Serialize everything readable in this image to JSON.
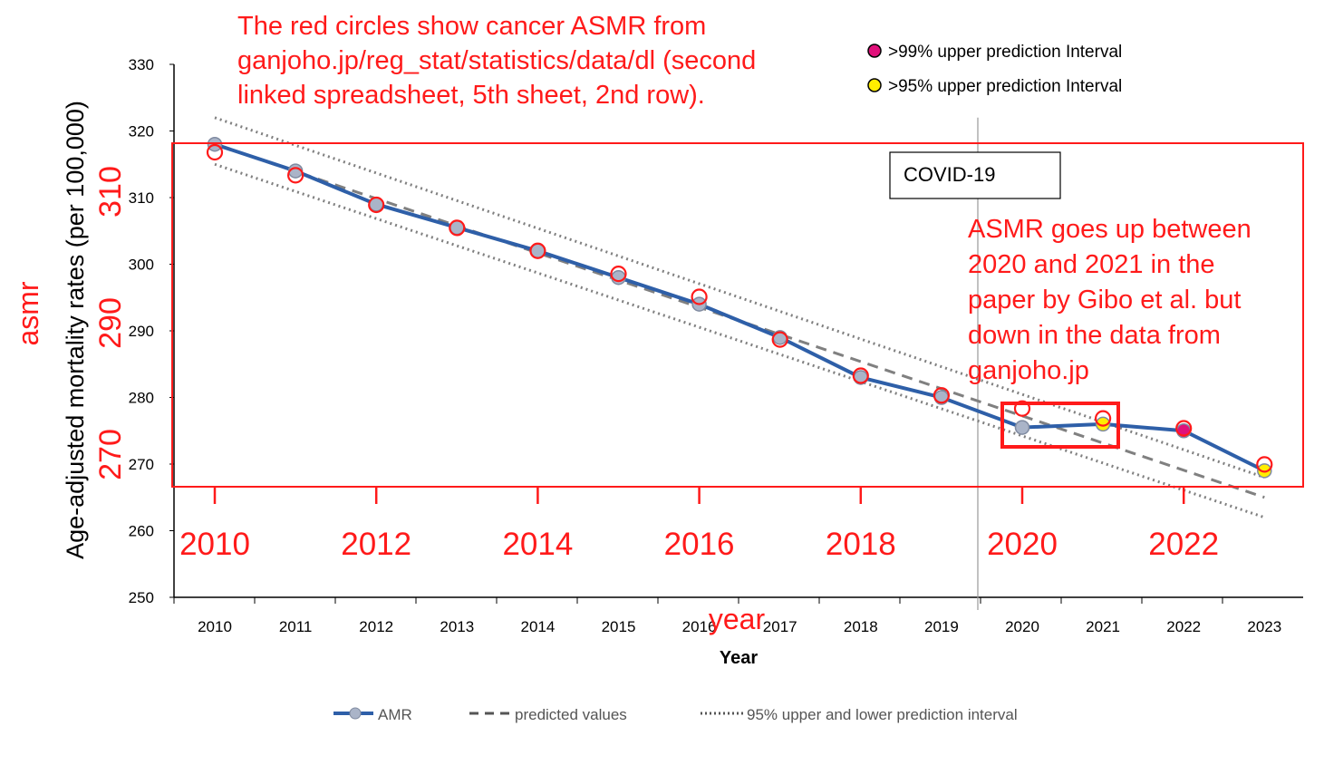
{
  "chart_data": [
    {
      "type": "line",
      "xlabel": "Year",
      "ylabel": "Age-adjusted mortality rates (per 100,000)",
      "ylim": [
        250,
        330
      ],
      "yticks": [
        250,
        260,
        270,
        280,
        290,
        300,
        310,
        320,
        330
      ],
      "x": [
        2010,
        2011,
        2012,
        2013,
        2014,
        2015,
        2016,
        2017,
        2018,
        2019,
        2020,
        2021,
        2022,
        2023
      ],
      "series": [
        {
          "name": "AMR",
          "style": "solid-markers",
          "color": "#2e5fa8",
          "values": [
            318,
            314,
            309,
            305.5,
            302,
            298,
            294,
            289,
            283,
            280,
            275.5,
            276,
            275,
            269
          ]
        },
        {
          "name": "predicted values",
          "style": "dashed",
          "color": "#808080",
          "x_range": [
            2010,
            2023
          ],
          "values_at_ends": [
            318,
            265
          ]
        },
        {
          "name": "95% upper and lower prediction interval",
          "style": "dotted",
          "color": "#808080",
          "upper_at_ends": [
            322,
            268
          ],
          "lower_at_ends": [
            315,
            262
          ]
        }
      ],
      "highlight_markers": [
        {
          "year": 2021,
          "value": 276,
          "color": "#ffee00"
        },
        {
          "year": 2022,
          "value": 275,
          "color": "#e0107a"
        },
        {
          "year": 2023,
          "value": 269,
          "color": "#ffee00"
        }
      ],
      "covid_line_year": 2019.45,
      "legend": {
        "placement": "bottom"
      },
      "marker_legend": [
        {
          "label": ">99% upper prediction Interval",
          "color": "#e0107a"
        },
        {
          "label": ">95% upper prediction Interval",
          "color": "#ffee00"
        }
      ],
      "covid_label": "COVID-19"
    },
    {
      "type": "scatter",
      "xlabel": "year",
      "ylabel": "asmr",
      "ylim": [
        266,
        316
      ],
      "yticks": [
        270,
        290,
        310
      ],
      "xticks": [
        2010,
        2012,
        2014,
        2016,
        2018,
        2020,
        2022
      ],
      "color": "#ff1a1a",
      "points": [
        [
          2010,
          316
        ],
        [
          2011,
          312.5
        ],
        [
          2012,
          308
        ],
        [
          2013,
          304.5
        ],
        [
          2014,
          301
        ],
        [
          2015,
          297.5
        ],
        [
          2016,
          294
        ],
        [
          2017,
          287.5
        ],
        [
          2018,
          282
        ],
        [
          2019,
          279
        ],
        [
          2020,
          277
        ],
        [
          2021,
          275.5
        ],
        [
          2022,
          274
        ],
        [
          2023,
          268.5
        ]
      ]
    }
  ],
  "annotations": {
    "top_note_lines": [
      "The red circles show cancer ASMR from",
      "ganjoho.jp/reg_stat/statistics/data/dl (second",
      "linked spreadsheet, 5th sheet, 2nd row)."
    ],
    "side_note_lines": [
      "ASMR goes up between",
      "2020 and 2021 in the",
      "paper by Gibo et al. but",
      "down in the data from",
      "ganjoho.jp"
    ]
  },
  "colors": {
    "amr_line": "#2e5fa8",
    "red": "#ff1a1a",
    "gray": "#808080"
  }
}
